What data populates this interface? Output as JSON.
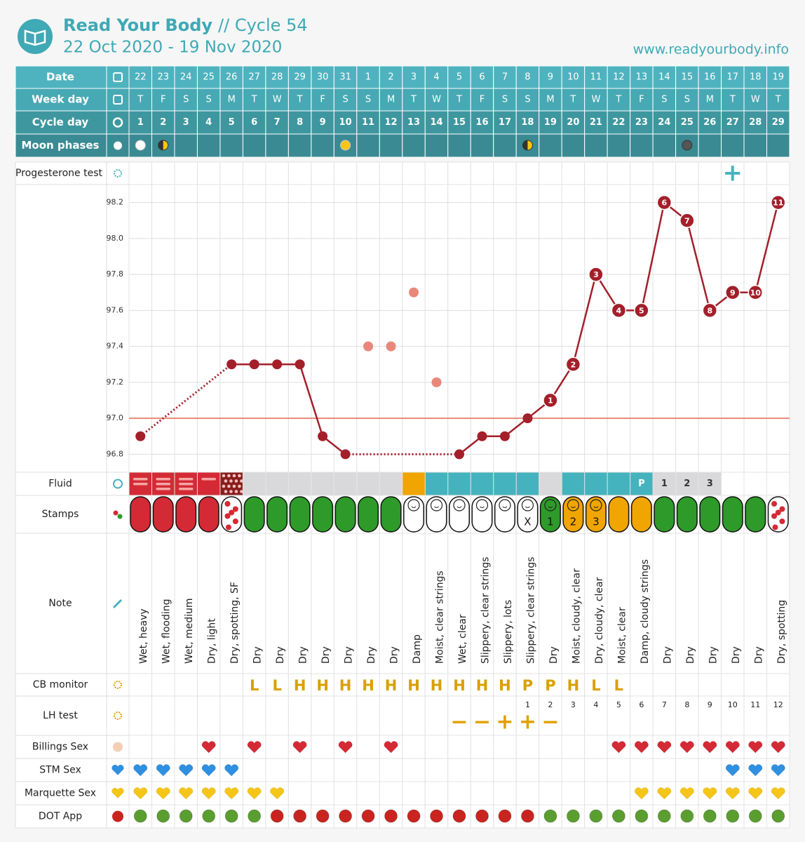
{
  "header": {
    "title": "Read Your Body",
    "cycle": "// Cycle 54",
    "dates": "22 Oct 2020 - 19 Nov 2020",
    "url": "www.readyourbody.info"
  },
  "row_labels": {
    "date": "Date",
    "weekday": "Week day",
    "cycle_day": "Cycle day",
    "moon": "Moon phases",
    "progesterone": "Progesterone test",
    "fluid": "Fluid",
    "stamps": "Stamps",
    "notes": "Note",
    "cb_monitor": "CB monitor",
    "lh_test": "LH test",
    "billings_sex": "Billings Sex",
    "stm_sex": "STM Sex",
    "marquette_sex": "Marquette Sex",
    "dot_app": "DOT App"
  },
  "days": {
    "date": [
      22,
      23,
      24,
      25,
      26,
      27,
      28,
      29,
      30,
      31,
      1,
      2,
      3,
      4,
      5,
      6,
      7,
      8,
      9,
      10,
      11,
      12,
      13,
      14,
      15,
      16,
      17,
      18,
      19
    ],
    "weekday": [
      "T",
      "F",
      "S",
      "S",
      "M",
      "T",
      "W",
      "T",
      "F",
      "S",
      "S",
      "M",
      "T",
      "W",
      "T",
      "F",
      "S",
      "S",
      "M",
      "T",
      "W",
      "T",
      "F",
      "S",
      "S",
      "M",
      "T",
      "W",
      "T"
    ],
    "cycle_day": [
      1,
      2,
      3,
      4,
      5,
      6,
      7,
      8,
      9,
      10,
      11,
      12,
      13,
      14,
      15,
      16,
      17,
      18,
      19,
      20,
      21,
      22,
      23,
      24,
      25,
      26,
      27,
      28,
      29
    ],
    "moon": [
      "full-white",
      "half",
      null,
      null,
      null,
      null,
      null,
      null,
      null,
      "full-yellow",
      null,
      null,
      null,
      null,
      null,
      null,
      null,
      "half",
      null,
      null,
      null,
      null,
      null,
      null,
      "new",
      null,
      null,
      null,
      null
    ]
  },
  "progesterone": [
    null,
    null,
    null,
    null,
    null,
    null,
    null,
    null,
    null,
    null,
    null,
    null,
    null,
    null,
    null,
    null,
    null,
    null,
    null,
    null,
    null,
    null,
    null,
    null,
    null,
    null,
    "+",
    null,
    null
  ],
  "chart_data": {
    "type": "line",
    "ylim": [
      96.7,
      98.3
    ],
    "yticks": [
      96.8,
      {
        "value": 97,
        "label": "97.0"
      },
      97.2,
      97.4,
      97.6,
      97.8,
      {
        "value": 98,
        "label": "98.0"
      },
      98.2
    ],
    "coverline": 97.0,
    "coverline_color": "#e8887a",
    "grid": true,
    "series": [
      {
        "color": "#a31f2a",
        "values": [
          96.9,
          null,
          null,
          null,
          97.3,
          97.3,
          97.3,
          97.3,
          96.9,
          96.8,
          null,
          null,
          null,
          null,
          96.8,
          96.9,
          96.9,
          97.0,
          97.1,
          97.3,
          97.8,
          97.6,
          97.6,
          98.2,
          98.1,
          97.6,
          97.7,
          97.7,
          98.2
        ],
        "point_numbers": [
          null,
          null,
          null,
          null,
          null,
          null,
          null,
          null,
          null,
          null,
          null,
          null,
          null,
          null,
          null,
          null,
          null,
          null,
          1,
          2,
          3,
          4,
          5,
          6,
          7,
          8,
          9,
          10,
          11
        ]
      },
      {
        "color": "#e8887a",
        "values": [
          null,
          null,
          null,
          null,
          null,
          null,
          null,
          null,
          null,
          null,
          97.4,
          97.4,
          97.7,
          97.2,
          null,
          null,
          null,
          null,
          null,
          null,
          null,
          null,
          null,
          null,
          null,
          null,
          null,
          null,
          null
        ]
      }
    ]
  },
  "fluid": {
    "palette": {
      "red": "#d42a35",
      "darkred": "#8b1c1c",
      "gray": "#d9d9dc",
      "orange": "#f0a500",
      "teal": "#45b3bd",
      "white": "#ffffff"
    },
    "kinds": [
      "red",
      "red",
      "red",
      "red",
      "darkred",
      "gray",
      "gray",
      "gray",
      "gray",
      "gray",
      "gray",
      "gray",
      "orange",
      "teal",
      "teal",
      "teal",
      "teal",
      "teal",
      "gray",
      "teal",
      "teal",
      "teal",
      "teal",
      "gray",
      "gray",
      "gray",
      "white",
      "white",
      "white"
    ],
    "dashes": [
      2,
      3,
      3,
      1,
      0,
      0,
      0,
      0,
      0,
      0,
      0,
      0,
      0,
      0,
      0,
      0,
      0,
      0,
      0,
      0,
      0,
      0,
      0,
      0,
      0,
      0,
      0,
      0,
      0
    ],
    "labels": [
      null,
      null,
      null,
      null,
      null,
      null,
      null,
      null,
      null,
      null,
      null,
      null,
      null,
      null,
      null,
      null,
      null,
      null,
      null,
      null,
      null,
      null,
      "P",
      "1",
      "2",
      "3",
      null,
      null,
      null
    ]
  },
  "stamps": {
    "palette": {
      "red": "#d42a35",
      "green": "#2e9a2a",
      "yellow": "#f0a500",
      "white": "#ffffff"
    },
    "kinds": [
      "red",
      "red",
      "red",
      "red",
      "spots",
      "green",
      "green",
      "green",
      "green",
      "green",
      "green",
      "green",
      "white-baby",
      "white-baby",
      "white-baby",
      "white-baby",
      "white-baby",
      "white-baby",
      "green-baby",
      "yellow-baby",
      "yellow-baby",
      "yellow",
      "yellow",
      "green",
      "green",
      "green",
      "green",
      "green",
      "spots"
    ],
    "labels": [
      null,
      null,
      null,
      null,
      null,
      null,
      null,
      null,
      null,
      null,
      null,
      null,
      null,
      null,
      null,
      null,
      null,
      "X",
      "1",
      "2",
      "3",
      null,
      null,
      null,
      null,
      null,
      null,
      null,
      null
    ]
  },
  "notes": [
    "Wet, heavy",
    "Wet, flooding",
    "Wet, medium",
    "Dry, light",
    "Dry, spotting, SF",
    "Dry",
    "Dry",
    "Dry",
    "Dry",
    "Dry",
    "Dry",
    "Dry",
    "Damp",
    "Moist, clear strings",
    "Wet, clear",
    "Slippery, clear strings",
    "Slippery, lots",
    "Slippery, clear strings",
    "Dry",
    "Moist, cloudy, clear",
    "Dry, cloudy, clear",
    "Moist, clear",
    "Damp, cloudy strings",
    "Dry",
    "Dry",
    "Dry",
    "Dry",
    "Dry",
    "Dry, spotting"
  ],
  "cb_monitor": [
    null,
    null,
    null,
    null,
    null,
    "L",
    "L",
    "H",
    "H",
    "H",
    "H",
    "H",
    "H",
    "H",
    "H",
    "H",
    "H",
    "P",
    "P",
    "H",
    "L",
    "L",
    null,
    null,
    null,
    null,
    null,
    null,
    null
  ],
  "lh_test": {
    "numbers": [
      null,
      null,
      null,
      null,
      null,
      null,
      null,
      null,
      null,
      null,
      null,
      null,
      null,
      null,
      null,
      null,
      null,
      1,
      2,
      3,
      4,
      5,
      6,
      7,
      8,
      9,
      10,
      11,
      12
    ],
    "results": [
      null,
      null,
      null,
      null,
      null,
      null,
      null,
      null,
      null,
      null,
      null,
      null,
      null,
      null,
      "−",
      "−",
      "+",
      "+",
      "−",
      null,
      null,
      null,
      null,
      null,
      null,
      null,
      null,
      null,
      null
    ]
  },
  "billings_sex": {
    "color": "#d42a35",
    "days": [
      false,
      false,
      false,
      true,
      false,
      true,
      false,
      true,
      false,
      true,
      false,
      true,
      false,
      false,
      false,
      false,
      false,
      false,
      false,
      false,
      false,
      true,
      true,
      true,
      true,
      true,
      true,
      true,
      true
    ]
  },
  "stm_sex": {
    "color": "#2f8fe0",
    "days": [
      true,
      true,
      true,
      true,
      true,
      false,
      false,
      false,
      false,
      false,
      false,
      false,
      false,
      false,
      false,
      false,
      false,
      false,
      false,
      false,
      false,
      false,
      false,
      false,
      false,
      false,
      true,
      true,
      true
    ]
  },
  "marquette_sex": {
    "color": "#f5c518",
    "days": [
      true,
      true,
      true,
      true,
      true,
      true,
      true,
      false,
      false,
      false,
      false,
      false,
      false,
      false,
      false,
      false,
      false,
      false,
      false,
      false,
      false,
      false,
      true,
      true,
      true,
      true,
      true,
      true,
      true
    ]
  },
  "dot_app": {
    "palette": {
      "green": "#5a9e2f",
      "red": "#c9241f"
    },
    "kinds": [
      "green",
      "green",
      "green",
      "green",
      "green",
      "green",
      "red",
      "red",
      "red",
      "red",
      "red",
      "red",
      "red",
      "red",
      "red",
      "red",
      "red",
      "red",
      "green",
      "green",
      "green",
      "green",
      "green",
      "green",
      "green",
      "green",
      "green",
      "green",
      "green"
    ]
  }
}
